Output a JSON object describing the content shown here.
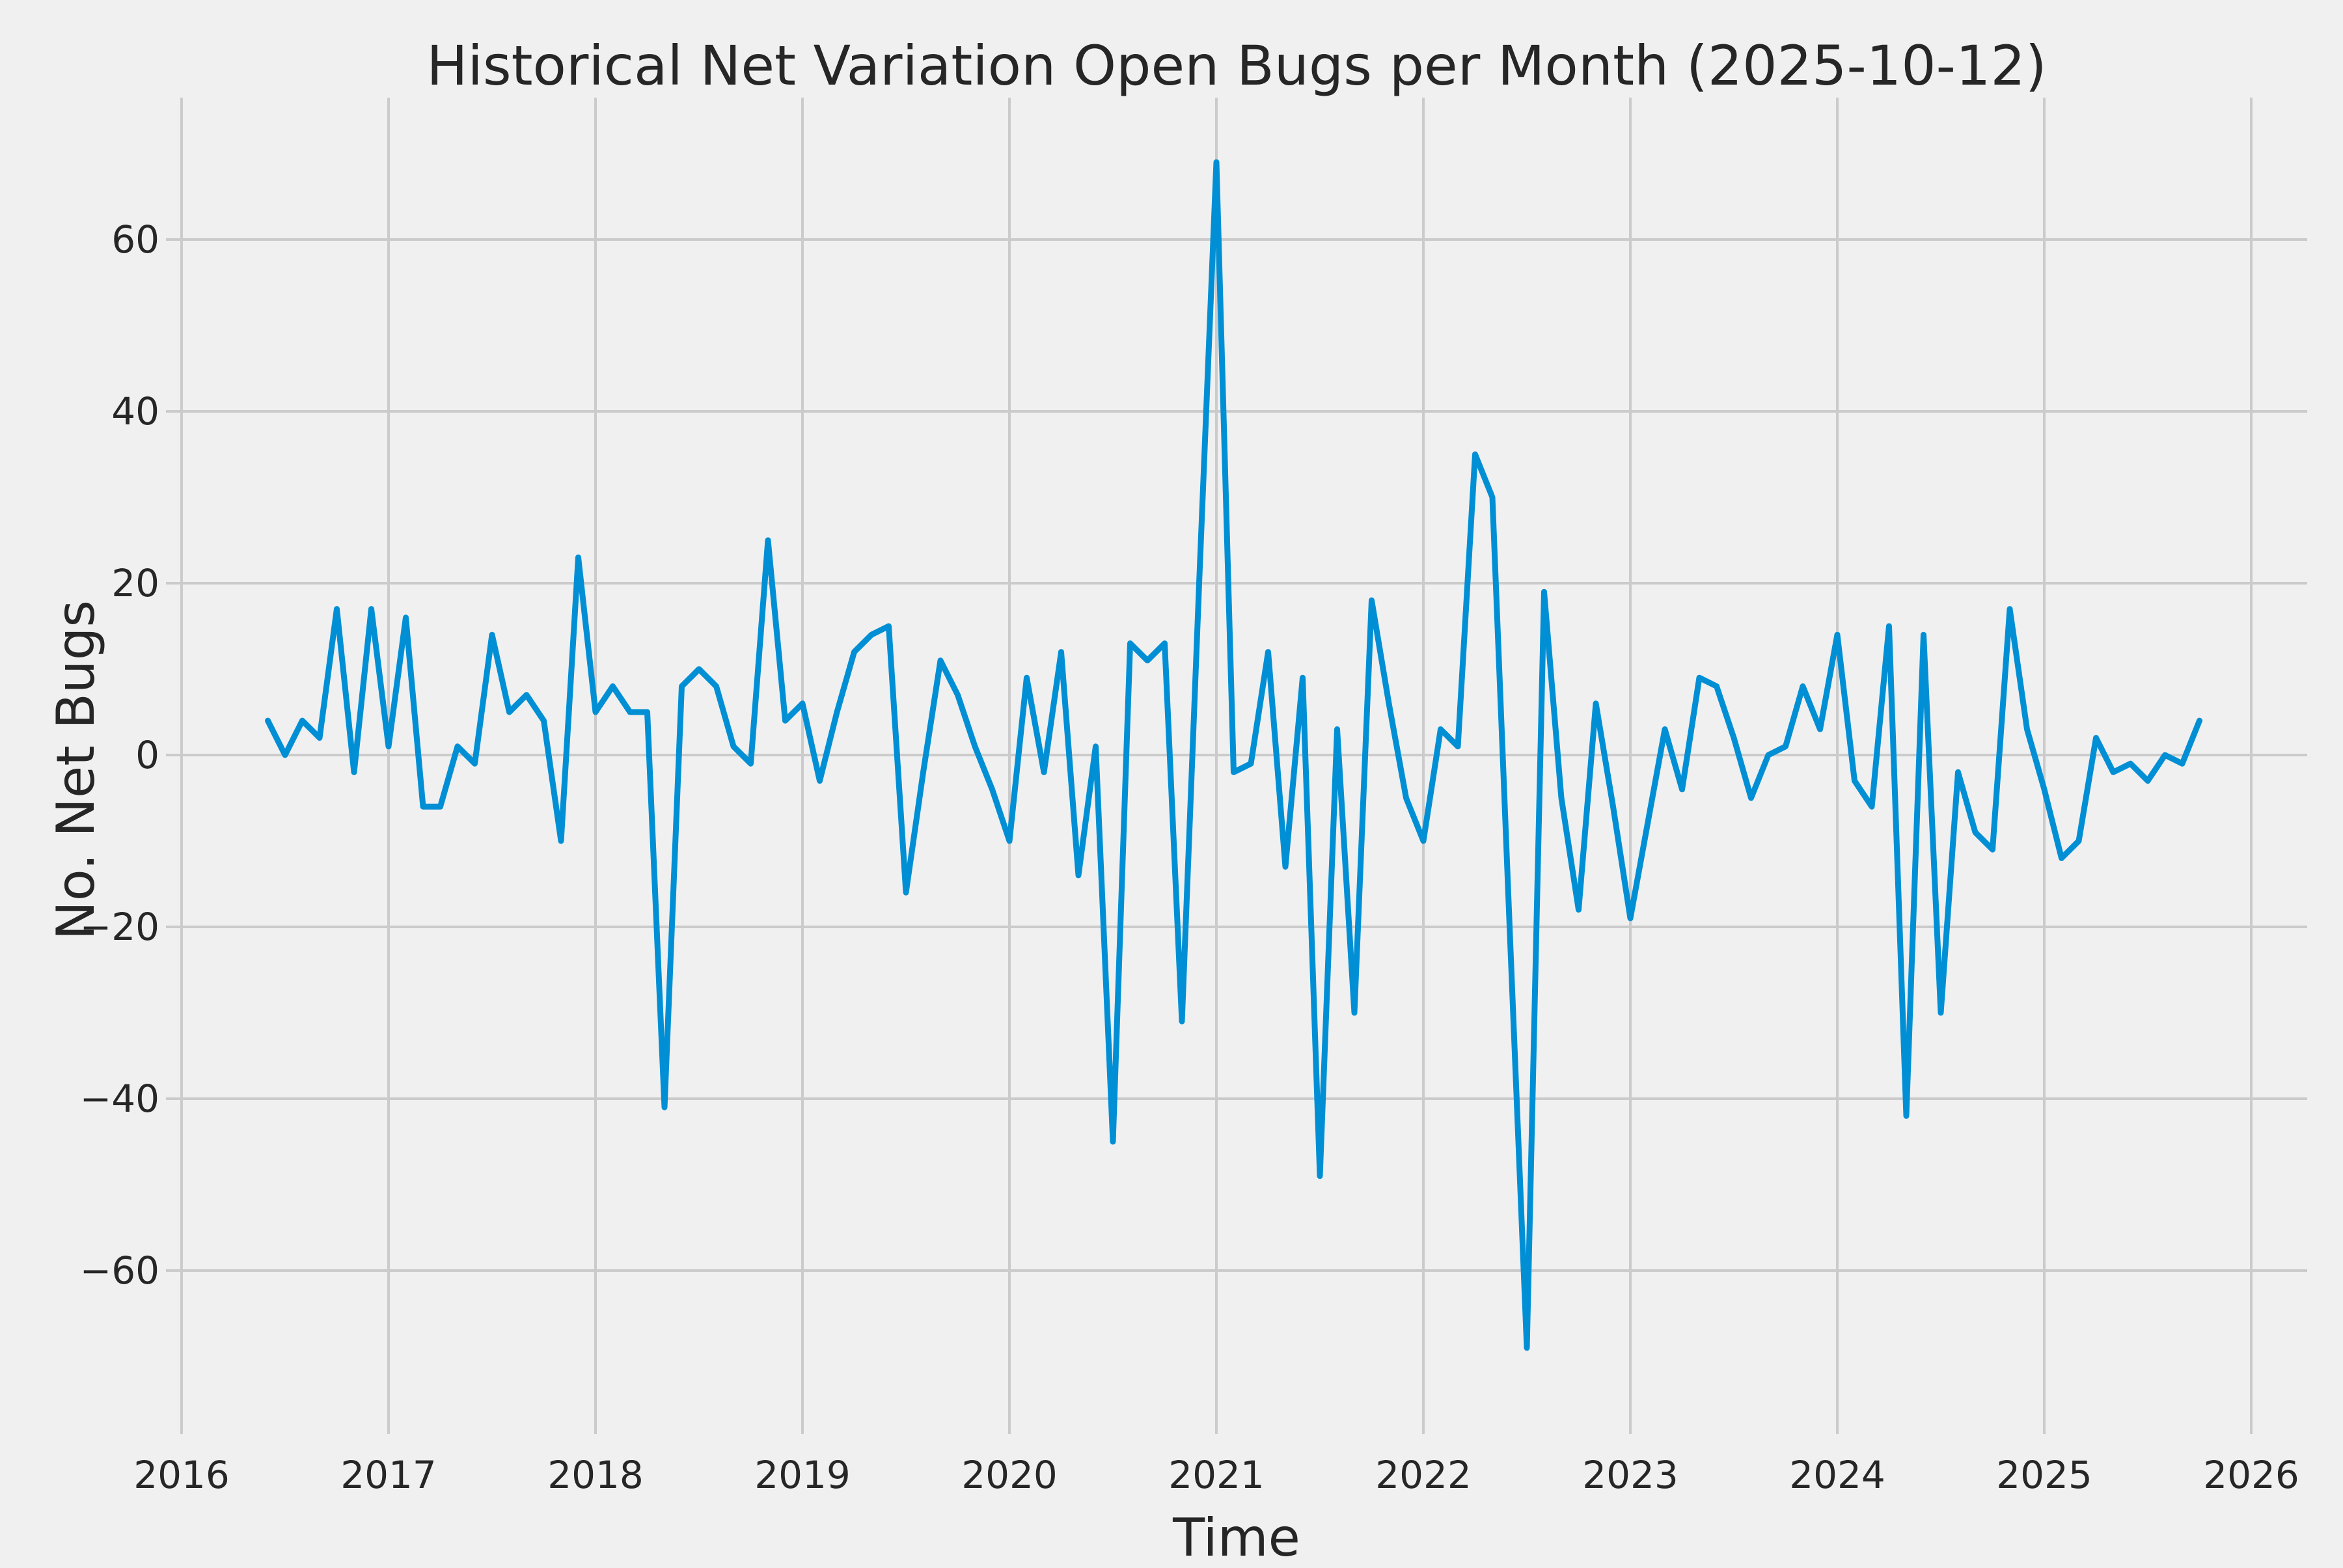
{
  "chart": {
    "title": "Historical Net Variation Open Bugs per Month (2025-10-12)",
    "xlabel": "Time",
    "ylabel": "No. Net Bugs"
  },
  "chart_data": {
    "type": "line",
    "title": "Historical Net Variation Open Bugs per Month (2025-10-12)",
    "xlabel": "Time",
    "ylabel": "No. Net Bugs",
    "legend": false,
    "grid": true,
    "background_color": "#f0f0f0",
    "grid_color": "#cbcbcb",
    "line_color": "#008fd5",
    "text_color": "#262626",
    "x_tick_labels": [
      "2016",
      "2017",
      "2018",
      "2019",
      "2020",
      "2021",
      "2022",
      "2023",
      "2024",
      "2025",
      "2026"
    ],
    "y_tick_labels": [
      "60",
      "40",
      "20",
      "0",
      "−20",
      "−40",
      "−60"
    ],
    "y_tick_values": [
      60,
      40,
      20,
      0,
      -20,
      -40,
      -60
    ],
    "xlim_years": [
      2015.925,
      2026.075
    ],
    "ylim": [
      -79,
      80
    ],
    "x": [
      "2016-06",
      "2016-07",
      "2016-08",
      "2016-09",
      "2016-10",
      "2016-11",
      "2016-12",
      "2017-01",
      "2017-02",
      "2017-03",
      "2017-04",
      "2017-05",
      "2017-06",
      "2017-07",
      "2017-08",
      "2017-09",
      "2017-10",
      "2017-11",
      "2017-12",
      "2018-01",
      "2018-02",
      "2018-03",
      "2018-04",
      "2018-05",
      "2018-06",
      "2018-07",
      "2018-08",
      "2018-09",
      "2018-10",
      "2018-11",
      "2018-12",
      "2019-01",
      "2019-02",
      "2019-03",
      "2019-04",
      "2019-05",
      "2019-06",
      "2019-07",
      "2019-08",
      "2019-09",
      "2019-10",
      "2019-11",
      "2019-12",
      "2020-01",
      "2020-02",
      "2020-03",
      "2020-04",
      "2020-05",
      "2020-06",
      "2020-07",
      "2020-08",
      "2020-09",
      "2020-10",
      "2020-11",
      "2020-12",
      "2021-01",
      "2021-02",
      "2021-03",
      "2021-04",
      "2021-05",
      "2021-06",
      "2021-07",
      "2021-08",
      "2021-09",
      "2021-10",
      "2021-11",
      "2021-12",
      "2022-01",
      "2022-02",
      "2022-03",
      "2022-04",
      "2022-05",
      "2022-06",
      "2022-07",
      "2022-08",
      "2022-09",
      "2022-10",
      "2022-11",
      "2022-12",
      "2023-01",
      "2023-02",
      "2023-03",
      "2023-04",
      "2023-05",
      "2023-06",
      "2023-07",
      "2023-08",
      "2023-09",
      "2023-10",
      "2023-11",
      "2023-12",
      "2024-01",
      "2024-02",
      "2024-03",
      "2024-04",
      "2024-05",
      "2024-06",
      "2024-07",
      "2024-08",
      "2024-09",
      "2024-10",
      "2024-11",
      "2024-12",
      "2025-01",
      "2025-02",
      "2025-03",
      "2025-04",
      "2025-05",
      "2025-06",
      "2025-07",
      "2025-08",
      "2025-09",
      "2025-10"
    ],
    "values": [
      4,
      0,
      4,
      2,
      17,
      -2,
      17,
      1,
      16,
      -6,
      -6,
      1,
      -1,
      14,
      5,
      7,
      4,
      -10,
      23,
      5,
      8,
      5,
      5,
      -41,
      8,
      10,
      8,
      1,
      -1,
      25,
      4,
      6,
      -3,
      5,
      12,
      14,
      15,
      -16,
      -2,
      11,
      7,
      1,
      -4,
      -10,
      9,
      -2,
      12,
      -14,
      1,
      -45,
      13,
      11,
      13,
      -31,
      20,
      69,
      -2,
      -1,
      12,
      -13,
      9,
      -49,
      3,
      -30,
      18,
      6,
      -5,
      -10,
      3,
      1,
      35,
      30,
      -20,
      -69,
      19,
      -5,
      -18,
      6,
      -6,
      -19,
      -8,
      3,
      -4,
      9,
      8,
      2,
      -5,
      0,
      1,
      8,
      3,
      14,
      -3,
      -6,
      15,
      -42,
      14,
      -30,
      -2,
      -9,
      -11,
      17,
      3,
      -4,
      -12,
      -10,
      2,
      -2,
      -1,
      -3,
      0,
      -1,
      4
    ]
  }
}
